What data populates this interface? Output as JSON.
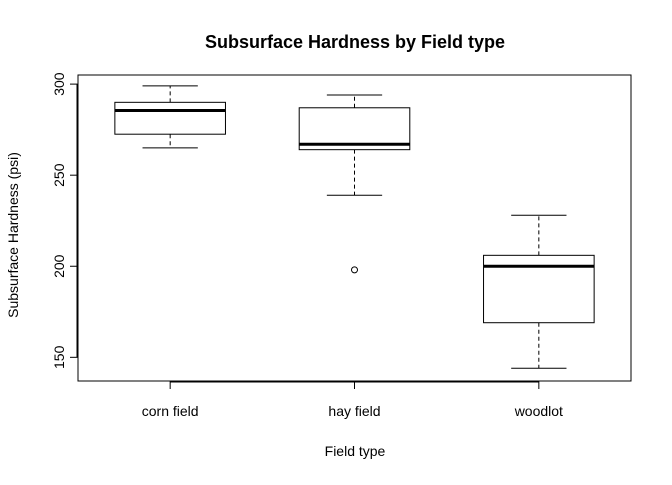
{
  "chart_data": {
    "type": "box",
    "title": "Subsurface Hardness by Field type",
    "xlabel": "Field type",
    "ylabel": "Subsurface Hardness (psi)",
    "ylim": [
      137,
      305
    ],
    "y_ticks": [
      150,
      200,
      250,
      300
    ],
    "categories": [
      "corn field",
      "hay field",
      "woodlot"
    ],
    "boxes": [
      {
        "category": "corn field",
        "whisker_low": 265,
        "q1": 272.5,
        "median": 285.5,
        "q3": 290,
        "whisker_high": 299,
        "outliers": []
      },
      {
        "category": "hay field",
        "whisker_low": 239,
        "q1": 264,
        "median": 267,
        "q3": 287,
        "whisker_high": 294,
        "outliers": [
          198
        ]
      },
      {
        "category": "woodlot",
        "whisker_low": 144,
        "q1": 169,
        "median": 200,
        "q3": 206,
        "whisker_high": 228,
        "outliers": []
      }
    ],
    "legend": "none",
    "grid": false,
    "colors": {
      "box_fill": "#ffffff",
      "stroke": "#000000"
    }
  }
}
